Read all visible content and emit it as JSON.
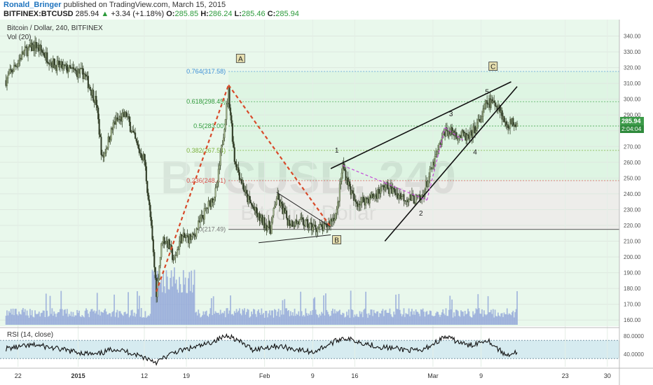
{
  "header": {
    "author": "Ronald_Bringer",
    "published": "published on TradingView.com, March 15, 2015",
    "symbol": "BITFINEX:BTCUSD",
    "last": "285.94",
    "change": "+3.34 (+1.18%)",
    "o_label": "O:",
    "o": "285.85",
    "h_label": "H:",
    "h": "286.24",
    "l_label": "L:",
    "l": "285.46",
    "c_label": "C:",
    "c": "285.94"
  },
  "chart_title": "Bitcoin / Dollar, 240, BITFINEX",
  "vol_label": "Vol (20)",
  "watermark": "BTCUSD, 240",
  "watermark_sub": "Bitcoin / Dollar",
  "price_tag": "285.94",
  "timer_tag": "2:04:04",
  "colors": {
    "background_green": "#e6f8ea",
    "candle": "#4a5a3a",
    "volume": "#8fa4d8",
    "fib_zone_grey": "#ebebe8",
    "fib_red": "#d9534f",
    "fib_blue": "#3d8fd6",
    "fib_green": "#2e9a3a",
    "abc_dash": "#d84a2a",
    "wave_dash": "#c44bd8",
    "price_tag": "#3c9b49"
  },
  "fib_labels": [
    {
      "text": "0.764(317.58)",
      "value": 317.58
    },
    {
      "text": "0.618(298.45)",
      "value": 298.45
    },
    {
      "text": "0.5(283.00)",
      "value": 283.0
    },
    {
      "text": "0.382(267.54)",
      "value": 267.54
    },
    {
      "text": "0.236(248.41)",
      "value": 248.41
    },
    {
      "text": "0(217.49)",
      "value": 217.49
    }
  ],
  "point_labels": [
    {
      "text": "A",
      "boxed": true
    },
    {
      "text": "B",
      "boxed": true
    },
    {
      "text": "C",
      "boxed": true
    },
    {
      "text": "1",
      "boxed": false
    },
    {
      "text": "2",
      "boxed": false
    },
    {
      "text": "3",
      "boxed": false
    },
    {
      "text": "4",
      "boxed": false
    },
    {
      "text": "5",
      "boxed": false
    }
  ],
  "rsi_label": "RSI (14, close)",
  "chart_data": {
    "type": "candlestick",
    "title": "Bitcoin / Dollar, 240, BITFINEX",
    "x_ticks": [
      "22",
      "2015",
      "12",
      "19",
      "Feb",
      "9",
      "16",
      "Mar",
      "9",
      "23",
      "30"
    ],
    "y_ticks": [
      "340.00",
      "330.00",
      "320.00",
      "310.00",
      "300.00",
      "290.00",
      "280.00",
      "270.00",
      "260.00",
      "250.00",
      "240.00",
      "230.00",
      "220.00",
      "210.00",
      "200.00",
      "190.00",
      "180.00",
      "170.00",
      "160.00"
    ],
    "ylim": [
      157,
      346
    ],
    "last_price": 285.94,
    "price_path": [
      {
        "x": "Dec 20",
        "y": 312
      },
      {
        "x": "Dec 23",
        "y": 330
      },
      {
        "x": "Dec 25",
        "y": 334
      },
      {
        "x": "Dec 28",
        "y": 322
      },
      {
        "x": "Dec 31",
        "y": 318
      },
      {
        "x": "Jan 2",
        "y": 316
      },
      {
        "x": "Jan 4",
        "y": 298
      },
      {
        "x": "Jan 5",
        "y": 262
      },
      {
        "x": "Jan 7",
        "y": 285
      },
      {
        "x": "Jan 9",
        "y": 290
      },
      {
        "x": "Jan 11",
        "y": 268
      },
      {
        "x": "Jan 12",
        "y": 262
      },
      {
        "x": "Jan 13",
        "y": 225
      },
      {
        "x": "Jan 14",
        "y": 178
      },
      {
        "x": "Jan 15",
        "y": 212
      },
      {
        "x": "Jan 16",
        "y": 208
      },
      {
        "x": "Jan 17",
        "y": 197
      },
      {
        "x": "Jan 18",
        "y": 212
      },
      {
        "x": "Jan 20",
        "y": 212
      },
      {
        "x": "Jan 22",
        "y": 228
      },
      {
        "x": "Jan 24",
        "y": 242
      },
      {
        "x": "Jan 26",
        "y": 305
      },
      {
        "x": "Jan 27",
        "y": 262
      },
      {
        "x": "Jan 29",
        "y": 238
      },
      {
        "x": "Jan 31",
        "y": 225
      },
      {
        "x": "Feb 2",
        "y": 218
      },
      {
        "x": "Feb 3",
        "y": 238
      },
      {
        "x": "Feb 5",
        "y": 222
      },
      {
        "x": "Feb 7",
        "y": 222
      },
      {
        "x": "Feb 9",
        "y": 219
      },
      {
        "x": "Feb 11",
        "y": 218
      },
      {
        "x": "Feb 13",
        "y": 228
      },
      {
        "x": "Feb 14",
        "y": 258
      },
      {
        "x": "Feb 16",
        "y": 234
      },
      {
        "x": "Feb 19",
        "y": 238
      },
      {
        "x": "Feb 21",
        "y": 245
      },
      {
        "x": "Feb 24",
        "y": 238
      },
      {
        "x": "Feb 27",
        "y": 236
      },
      {
        "x": "Mar 1",
        "y": 258
      },
      {
        "x": "Mar 3",
        "y": 280
      },
      {
        "x": "Mar 5",
        "y": 278
      },
      {
        "x": "Mar 7",
        "y": 275
      },
      {
        "x": "Mar 9",
        "y": 288
      },
      {
        "x": "Mar 10",
        "y": 298
      },
      {
        "x": "Mar 12",
        "y": 296
      },
      {
        "x": "Mar 13",
        "y": 284
      },
      {
        "x": "Mar 15",
        "y": 285.94
      }
    ],
    "fib_levels": [
      {
        "ratio": 0.764,
        "value": 317.58
      },
      {
        "ratio": 0.618,
        "value": 298.45
      },
      {
        "ratio": 0.5,
        "value": 283.0
      },
      {
        "ratio": 0.382,
        "value": 267.54
      },
      {
        "ratio": 0.236,
        "value": 248.41
      },
      {
        "ratio": 0,
        "value": 217.49
      }
    ],
    "rsi": {
      "title": "RSI (14, close)",
      "y_ticks": [
        "80.0000",
        "40.0000"
      ],
      "upper_band": 70,
      "lower_band": 30,
      "ylim": [
        15,
        92
      ],
      "series": [
        {
          "x": "Dec 20",
          "y": 52
        },
        {
          "x": "Dec 25",
          "y": 60
        },
        {
          "x": "Dec 30",
          "y": 48
        },
        {
          "x": "Jan 4",
          "y": 38
        },
        {
          "x": "Jan 7",
          "y": 52
        },
        {
          "x": "Jan 10",
          "y": 42
        },
        {
          "x": "Jan 13",
          "y": 28
        },
        {
          "x": "Jan 14",
          "y": 22
        },
        {
          "x": "Jan 17",
          "y": 44
        },
        {
          "x": "Jan 22",
          "y": 60
        },
        {
          "x": "Jan 26",
          "y": 82
        },
        {
          "x": "Jan 30",
          "y": 50
        },
        {
          "x": "Feb 3",
          "y": 58
        },
        {
          "x": "Feb 9",
          "y": 44
        },
        {
          "x": "Feb 14",
          "y": 76
        },
        {
          "x": "Feb 20",
          "y": 56
        },
        {
          "x": "Feb 27",
          "y": 46
        },
        {
          "x": "Mar 3",
          "y": 78
        },
        {
          "x": "Mar 7",
          "y": 58
        },
        {
          "x": "Mar 10",
          "y": 72
        },
        {
          "x": "Mar 13",
          "y": 38
        },
        {
          "x": "Mar 15",
          "y": 44
        }
      ]
    }
  }
}
